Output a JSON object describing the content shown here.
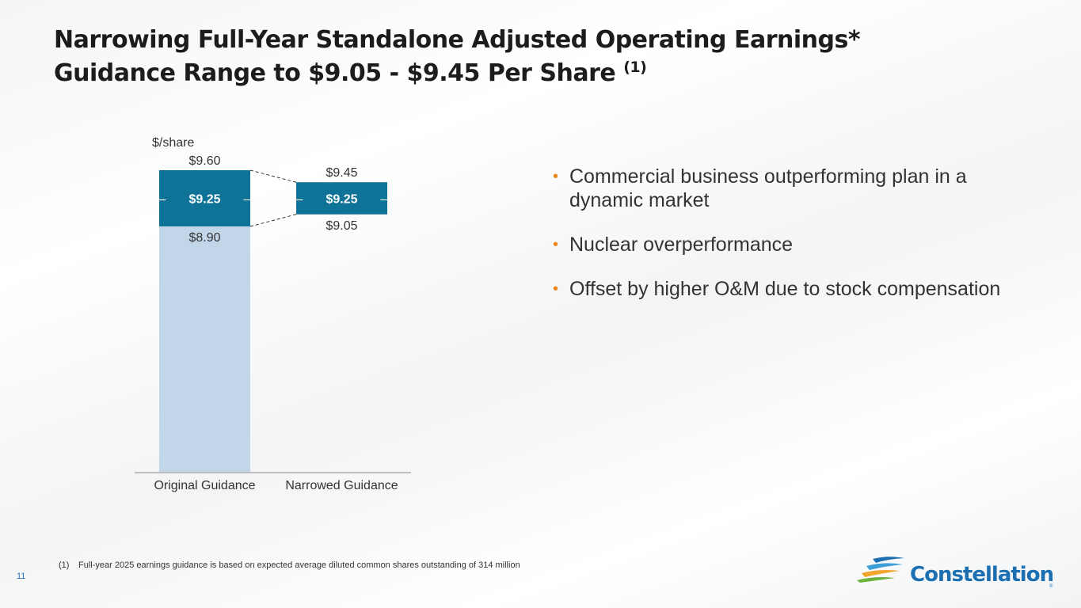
{
  "slide": {
    "title_line1": "Narrowing Full-Year Standalone Adjusted Operating Earnings*",
    "title_line2": "Guidance Range to $9.05 - $9.45 Per Share ",
    "title_sup": "(1)",
    "page_number": "11"
  },
  "bullets": [
    "Commercial business outperforming plan in a dynamic market",
    "Nuclear overperformance",
    "Offset by higher O&M due to stock compensation"
  ],
  "bullet_glyph": "•",
  "footnote": {
    "marker": "(1)",
    "text": "Full-year 2025 earnings guidance is based on expected average diluted common shares outstanding of 314 million"
  },
  "logo": {
    "text": "Constellation",
    "reg": "®"
  },
  "colors": {
    "base_bar": "#c2d6ea",
    "range_bar": "#0e7396",
    "bullet": "#e8891e",
    "brand": "#1c6fb0"
  },
  "chart_data": {
    "type": "bar",
    "unit_label": "$/share",
    "ylim": [
      0,
      9.6
    ],
    "tick_marker": "–",
    "categories": [
      "Original Guidance",
      "Narrowed Guidance"
    ],
    "bars": [
      {
        "category": "Original Guidance",
        "low": 8.9,
        "high": 9.6,
        "mid": 9.25,
        "low_label": "$8.90",
        "high_label": "$9.60",
        "mid_label": "$9.25",
        "base_visible": true
      },
      {
        "category": "Narrowed Guidance",
        "low": 9.05,
        "high": 9.45,
        "mid": 9.25,
        "low_label": "$9.05",
        "high_label": "$9.45",
        "mid_label": "$9.25",
        "base_visible": false
      }
    ]
  }
}
